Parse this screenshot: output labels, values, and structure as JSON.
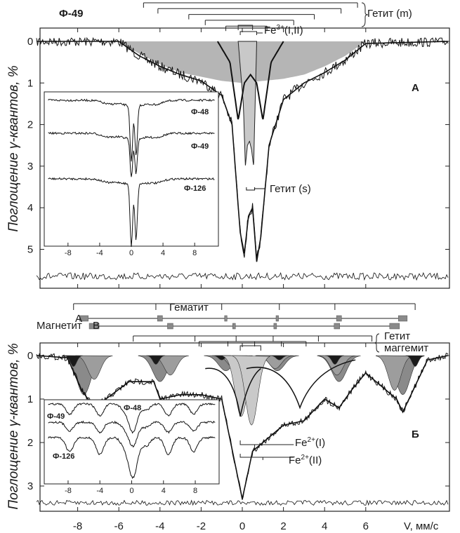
{
  "chart_data": [
    {
      "id": "A",
      "type": "line",
      "sample_label": "Ф-49",
      "panel_label": "A",
      "ylabel": "Поглощение γ-квантов, %",
      "y_ticks": [
        "0",
        "1",
        "2",
        "3",
        "4",
        "5"
      ],
      "ylim": [
        0,
        5.6
      ],
      "xlim": [
        -10.5,
        10.5
      ],
      "x_ticks": [
        -8,
        -6,
        -4,
        -2,
        0,
        2,
        4,
        6,
        8
      ],
      "annotations": [
        "Гетит (m)",
        "Fe3+(I,II)",
        "Гетит (s)"
      ],
      "series": [
        {
          "role": "envelope_fit",
          "x": [
            -10,
            -6,
            -5,
            -4,
            -3,
            -2,
            -1,
            -0.5,
            -0.1,
            0.1,
            0.3,
            0.5,
            0.7,
            0.9,
            1.3,
            2,
            3,
            4,
            5,
            6,
            10
          ],
          "y": [
            0,
            0,
            0.35,
            0.6,
            0.8,
            0.95,
            1.3,
            2.0,
            4.6,
            5.1,
            4.2,
            4.0,
            5.3,
            4.7,
            2.5,
            1.4,
            1.0,
            0.75,
            0.45,
            0.05,
            0
          ]
        },
        {
          "role": "goethite_m_shaded",
          "x": [
            -6,
            -5,
            -4,
            -3,
            -2,
            -1,
            0,
            1,
            2,
            3,
            4,
            5,
            6
          ],
          "y": [
            0,
            0.3,
            0.55,
            0.75,
            0.85,
            0.95,
            1.0,
            0.95,
            0.9,
            0.8,
            0.6,
            0.35,
            0
          ]
        },
        {
          "role": "fe3_doublet",
          "x": [
            -1.2,
            -0.6,
            -0.2,
            0.1,
            0.4,
            0.7,
            1.0,
            1.4,
            2.0
          ],
          "y": [
            0,
            0.5,
            1.9,
            1.0,
            0.8,
            1.0,
            1.9,
            0.5,
            0
          ]
        },
        {
          "role": "goethite_s_doublet",
          "x": [
            -0.2,
            0.05,
            0.15,
            0.25,
            0.35,
            0.45,
            0.55,
            0.7
          ],
          "y": [
            0,
            1.5,
            3.0,
            2.5,
            2.4,
            2.6,
            3.0,
            0
          ]
        }
      ],
      "inset": {
        "x_ticks": [
          -8,
          -4,
          0,
          4,
          8
        ],
        "series_labels": [
          "Ф-48",
          "Ф-49",
          "Ф-126"
        ]
      }
    },
    {
      "id": "B",
      "type": "line",
      "panel_label": "Б",
      "ylabel": "Поглощение γ-квантов, %",
      "y_ticks": [
        "0",
        "1",
        "2",
        "3"
      ],
      "ylim": [
        0,
        3.6
      ],
      "xlim": [
        -10.5,
        10.5
      ],
      "x_ticks": [
        "-8",
        "-6",
        "-4",
        "-2",
        "0",
        "2",
        "4",
        "6"
      ],
      "xlabel": "V, мм/с",
      "legend_labels": [
        "Гематит",
        "Магнетит",
        "A",
        "B",
        "Гетит",
        "маггемит"
      ],
      "annotations": [
        "Fe2+(I)",
        "Fe2+(II)"
      ],
      "lines": {
        "hematite": [
          -8.2,
          -4.2,
          -1.0,
          1.8,
          4.5,
          8.4
        ],
        "magnetite_A": [
          -7.7,
          -4.0,
          -0.8,
          1.7,
          4.7,
          7.8
        ],
        "magnetite_B": [
          -7.2,
          -3.5,
          -0.4,
          1.6,
          4.6,
          7.4
        ],
        "goethite": [
          -5.3,
          -2.3,
          -0.3,
          1.5,
          3.7,
          6.3
        ],
        "maghemite": [
          -0.1,
          0.9
        ]
      },
      "series": [
        {
          "role": "envelope_fit",
          "x": [
            -10,
            -8.5,
            -7.8,
            -7.2,
            -5.5,
            -4.3,
            -4.0,
            -3,
            -2,
            -1,
            0,
            0.5,
            1,
            2,
            3,
            4,
            4.7,
            5.3,
            6,
            7.5,
            7.8,
            9,
            10
          ],
          "y": [
            0,
            0.05,
            0.8,
            1.2,
            0.6,
            0.6,
            1.0,
            0.9,
            0.9,
            1.0,
            3.3,
            2.2,
            2.0,
            1.6,
            1.5,
            1.0,
            1.2,
            0.8,
            0.4,
            1.0,
            1.3,
            0.1,
            0
          ]
        }
      ],
      "inset": {
        "x_ticks": [
          -8,
          -4,
          0,
          4,
          8
        ],
        "series_labels": [
          "Ф-49",
          "Ф-48",
          "Ф-126"
        ]
      }
    }
  ]
}
